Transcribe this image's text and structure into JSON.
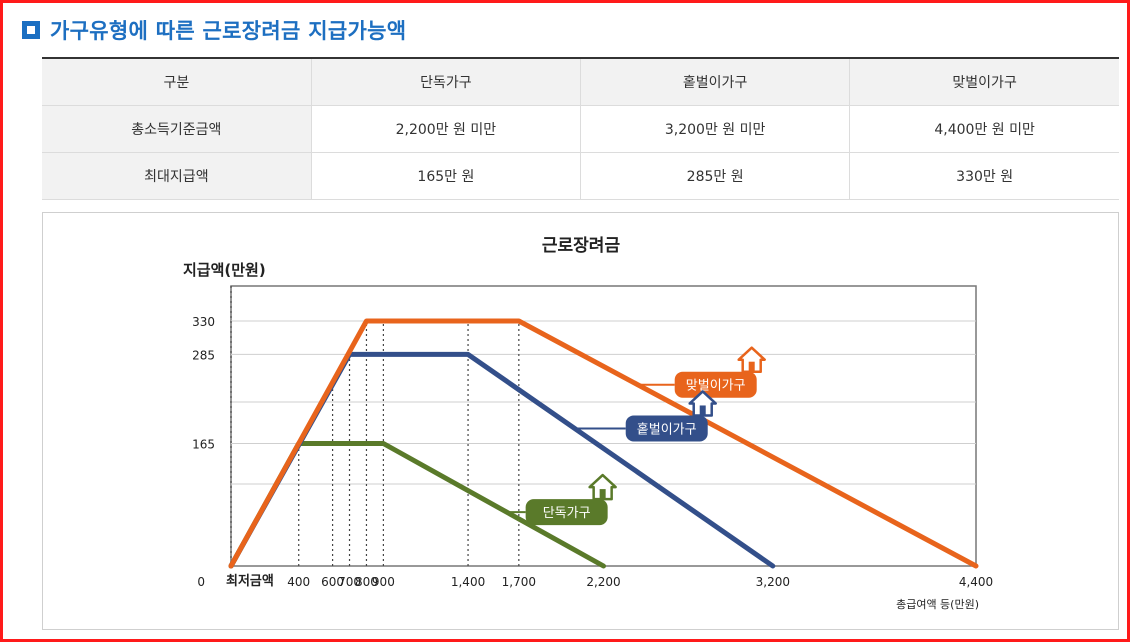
{
  "header": {
    "title": "가구유형에 따른 근로장려금 지급가능액"
  },
  "table": {
    "headers": [
      "구분",
      "단독가구",
      "홑벌이가구",
      "맞벌이가구"
    ],
    "rows": [
      [
        "총소득기준금액",
        "2,200만 원 미만",
        "3,200만 원 미만",
        "4,400만 원 미만"
      ],
      [
        "최대지급액",
        "165만 원",
        "285만 원",
        "330만 원"
      ]
    ]
  },
  "chart_data": {
    "type": "line",
    "title": "근로장려금",
    "ylabel": "지급액(만원)",
    "xlabel": "총급여액 등(만원)",
    "x_origin_label": "0",
    "x_min_label": "최저금액",
    "xticks": [
      400,
      600,
      700,
      800,
      900,
      1400,
      1700,
      2200,
      3200,
      4400
    ],
    "xtick_labels": [
      "400",
      "600",
      "700",
      "800",
      "900",
      "1,400",
      "1,700",
      "2,200",
      "3,200",
      "4,400"
    ],
    "yticks": [
      165,
      285,
      330
    ],
    "ytick_labels": [
      "165",
      "285",
      "330"
    ],
    "xlim": [
      0,
      4400
    ],
    "ylim": [
      0,
      330
    ],
    "grid": true,
    "series": [
      {
        "name": "맞벌이가구",
        "color": "#e8641c",
        "icon": "house-icon",
        "x": [
          0,
          800,
          1700,
          4400
        ],
        "y": [
          0,
          330,
          330,
          0
        ]
      },
      {
        "name": "홑벌이가구",
        "color": "#334f8a",
        "icon": "house-icon",
        "x": [
          0,
          700,
          1400,
          3200
        ],
        "y": [
          0,
          285,
          285,
          0
        ]
      },
      {
        "name": "단독가구",
        "color": "#5a7a2a",
        "icon": "house-icon",
        "x": [
          0,
          400,
          900,
          2200
        ],
        "y": [
          0,
          165,
          165,
          0
        ]
      }
    ]
  }
}
